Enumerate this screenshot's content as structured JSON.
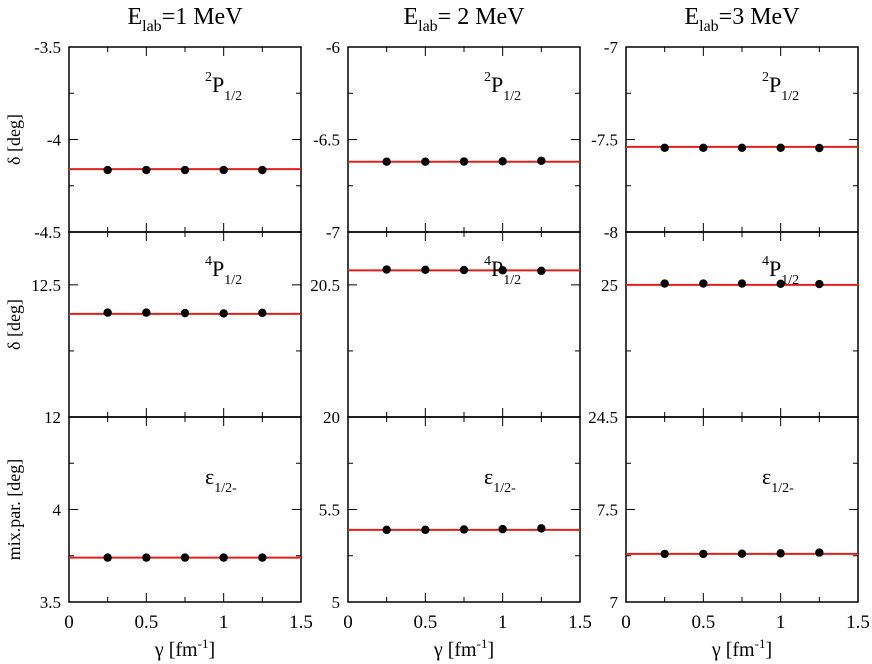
{
  "colors": {
    "fit_line": "#e0201b",
    "points": "#000000",
    "axes": "#000000",
    "background": "#ffffff"
  },
  "chart_data": [
    {
      "type": "scatter",
      "column_title": {
        "base": "E",
        "sub": "lab",
        "rest": "=1 MeV"
      },
      "xlabel": {
        "greek": "γ",
        "unit_base": " [fm",
        "unit_sup": "-1",
        "unit_close": "]"
      },
      "xlim": [
        0,
        1.5
      ],
      "xticks": [
        "0",
        "0.5",
        "1",
        "1.5"
      ],
      "panels": [
        {
          "id": "2P12",
          "label": {
            "sup": "2",
            "base": "P",
            "sub": "1/2"
          },
          "ylabel": "δ [deg]",
          "ylim": [
            -4.5,
            -3.5
          ],
          "yticks": [
            {
              "v": -3.5,
              "t": "-3.5"
            },
            {
              "v": -4,
              "t": "-4"
            },
            {
              "v": -4.5,
              "t": "-4.5"
            }
          ],
          "x": [
            0.25,
            0.5,
            0.75,
            1.0,
            1.25
          ],
          "y": [
            -4.165,
            -4.165,
            -4.165,
            -4.165,
            -4.165
          ],
          "fit": -4.16
        },
        {
          "id": "4P12",
          "label": {
            "sup": "4",
            "base": "P",
            "sub": "1/2"
          },
          "ylabel": "δ [deg]",
          "ylim": [
            12.0,
            12.7
          ],
          "yticks": [
            {
              "v": 12.5,
              "t": "12.5"
            },
            {
              "v": 12.0,
              "t": "12"
            }
          ],
          "x": [
            0.25,
            0.5,
            0.75,
            1.0,
            1.25
          ],
          "y": [
            12.395,
            12.395,
            12.393,
            12.392,
            12.394
          ],
          "fit": 12.39
        },
        {
          "id": "eps",
          "label": {
            "sup": "",
            "base": "ε",
            "sub": "1/2-"
          },
          "ylabel": "mix.par. [deg]",
          "ylim": [
            3.5,
            4.5
          ],
          "yticks": [
            {
              "v": 4,
              "t": "4"
            },
            {
              "v": 3.5,
              "t": "3.5"
            }
          ],
          "x": [
            0.25,
            0.5,
            0.75,
            1.0,
            1.25
          ],
          "y": [
            3.74,
            3.74,
            3.74,
            3.74,
            3.74
          ],
          "fit": 3.74
        }
      ]
    },
    {
      "type": "scatter",
      "column_title": {
        "base": "E",
        "sub": "lab",
        "rest": "= 2 MeV"
      },
      "xlabel": {
        "greek": "γ",
        "unit_base": " [fm",
        "unit_sup": "-1",
        "unit_close": "]"
      },
      "xlim": [
        0,
        1.5
      ],
      "xticks": [
        "0",
        "0.5",
        "1",
        "1.5"
      ],
      "panels": [
        {
          "id": "2P12",
          "label": {
            "sup": "2",
            "base": "P",
            "sub": "1/2"
          },
          "ylabel": "",
          "ylim": [
            -7.0,
            -6.0
          ],
          "yticks": [
            {
              "v": -6,
              "t": "-6"
            },
            {
              "v": -6.5,
              "t": "-6.5"
            },
            {
              "v": -7,
              "t": "-7"
            }
          ],
          "x": [
            0.25,
            0.5,
            0.75,
            1.0,
            1.25
          ],
          "y": [
            -6.62,
            -6.62,
            -6.619,
            -6.618,
            -6.615
          ],
          "fit": -6.62
        },
        {
          "id": "4P12",
          "label": {
            "sup": "4",
            "base": "P",
            "sub": "1/2"
          },
          "ylabel": "",
          "ylim": [
            20.0,
            20.7
          ],
          "yticks": [
            {
              "v": 20.5,
              "t": "20.5"
            },
            {
              "v": 20.0,
              "t": "20"
            }
          ],
          "x": [
            0.25,
            0.5,
            0.75,
            1.0,
            1.25
          ],
          "y": [
            20.558,
            20.557,
            20.556,
            20.555,
            20.553
          ],
          "fit": 20.555
        },
        {
          "id": "eps",
          "label": {
            "sup": "",
            "base": "ε",
            "sub": "1/2-"
          },
          "ylabel": "",
          "ylim": [
            5.0,
            6.0
          ],
          "yticks": [
            {
              "v": 5.5,
              "t": "5.5"
            },
            {
              "v": 5,
              "t": "5"
            }
          ],
          "x": [
            0.25,
            0.5,
            0.75,
            1.0,
            1.25
          ],
          "y": [
            5.39,
            5.39,
            5.392,
            5.394,
            5.398
          ],
          "fit": 5.39
        }
      ]
    },
    {
      "type": "scatter",
      "column_title": {
        "base": "E",
        "sub": "lab",
        "rest": "=3 MeV"
      },
      "xlabel": {
        "greek": "γ",
        "unit_base": " [fm",
        "unit_sup": "-1",
        "unit_close": "]"
      },
      "xlim": [
        0,
        1.5
      ],
      "xticks": [
        "0",
        "0.5",
        "1",
        "1.5"
      ],
      "panels": [
        {
          "id": "2P12",
          "label": {
            "sup": "2",
            "base": "P",
            "sub": "1/2"
          },
          "ylabel": "",
          "ylim": [
            -8.0,
            -7.0
          ],
          "yticks": [
            {
              "v": -7,
              "t": "-7"
            },
            {
              "v": -7.5,
              "t": "-7.5"
            },
            {
              "v": -8,
              "t": "-8"
            }
          ],
          "x": [
            0.25,
            0.5,
            0.75,
            1.0,
            1.25
          ],
          "y": [
            -7.545,
            -7.545,
            -7.545,
            -7.545,
            -7.546
          ],
          "fit": -7.54
        },
        {
          "id": "4P12",
          "label": {
            "sup": "4",
            "base": "P",
            "sub": "1/2"
          },
          "ylabel": "",
          "ylim": [
            24.5,
            25.2
          ],
          "yticks": [
            {
              "v": 25,
              "t": "25"
            },
            {
              "v": 24.5,
              "t": "24.5"
            }
          ],
          "x": [
            0.25,
            0.5,
            0.75,
            1.0,
            1.25
          ],
          "y": [
            25.005,
            25.005,
            25.005,
            25.004,
            25.003
          ],
          "fit": 25.0
        },
        {
          "id": "eps",
          "label": {
            "sup": "",
            "base": "ε",
            "sub": "1/2-"
          },
          "ylabel": "",
          "ylim": [
            7.0,
            8.0
          ],
          "yticks": [
            {
              "v": 7.5,
              "t": "7.5"
            },
            {
              "v": 7,
              "t": "7"
            }
          ],
          "x": [
            0.25,
            0.5,
            0.75,
            1.0,
            1.25
          ],
          "y": [
            7.26,
            7.26,
            7.261,
            7.263,
            7.267
          ],
          "fit": 7.26
        }
      ]
    }
  ]
}
